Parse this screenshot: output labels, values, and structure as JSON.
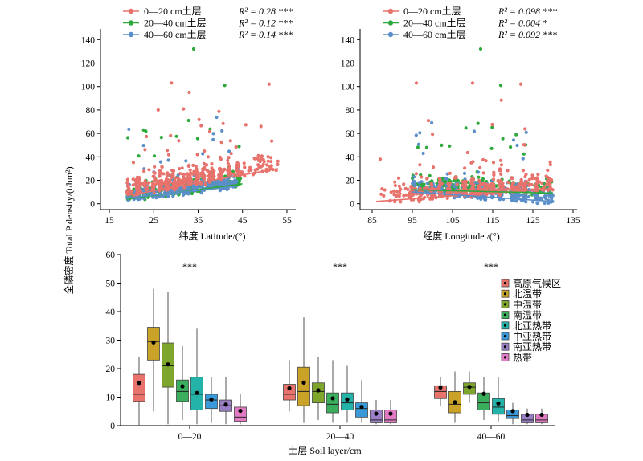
{
  "figure": {
    "ylabel": "全磷密度 Total P density/(t/hm²)"
  },
  "chart_data": [
    {
      "id": "latitude",
      "type": "scatter",
      "xlabel": "纬度 Latitude/(°)",
      "xlim": [
        13,
        57
      ],
      "ylim": [
        -5,
        145
      ],
      "xticks": [
        15,
        25,
        35,
        45,
        55
      ],
      "yticks": [
        0,
        20,
        40,
        60,
        80,
        100,
        120,
        140
      ],
      "legend_position": "top",
      "series": [
        {
          "name": "0—20 cm土层",
          "r2": "R² = 0.28 ***",
          "color": "#E8726C",
          "x_range": [
            19,
            53
          ],
          "trend": {
            "x": [
              19,
              53
            ],
            "y": [
              7,
              30
            ]
          }
        },
        {
          "name": "20—40 cm土层",
          "r2": "R² = 0.12 ***",
          "color": "#2EAA3D",
          "x_range": [
            19,
            45
          ],
          "trend": {
            "x": [
              19,
              45
            ],
            "y": [
              4,
              17
            ]
          }
        },
        {
          "name": "40—60 cm土层",
          "r2": "R² = 0.14 ***",
          "color": "#5B8FC9",
          "x_range": [
            19,
            44
          ],
          "trend": {
            "x": [
              19,
              44
            ],
            "y": [
              5,
              15
            ]
          }
        }
      ]
    },
    {
      "id": "longitude",
      "type": "scatter",
      "xlabel": "经度  Longitude /(°)",
      "xlim": [
        82,
        136
      ],
      "ylim": [
        -5,
        145
      ],
      "xticks": [
        85,
        95,
        105,
        115,
        125,
        135
      ],
      "yticks": [
        0,
        20,
        40,
        60,
        80,
        100,
        120,
        140
      ],
      "legend_position": "top",
      "series": [
        {
          "name": "0—20 cm土层",
          "r2": "R² = 0.098 ***",
          "color": "#E8726C",
          "x_range": [
            87,
            130
          ],
          "trend": {
            "x": [
              86,
              130
            ],
            "y": [
              2,
              13
            ]
          }
        },
        {
          "name": "20—40 cm土层",
          "r2": "R² = 0.004 *",
          "color": "#2EAA3D",
          "x_range": [
            95,
            130
          ],
          "trend": {
            "x": [
              95,
              130
            ],
            "y": [
              12,
              9
            ]
          }
        },
        {
          "name": "40—60 cm土层",
          "r2": "R² = 0.092 ***",
          "color": "#5B8FC9",
          "x_range": [
            95,
            130
          ],
          "trend": {
            "x": [
              95,
              130
            ],
            "y": [
              10,
              2
            ]
          }
        }
      ]
    },
    {
      "id": "boxplot",
      "type": "box",
      "xlabel": "土层 Soil layer/cm",
      "ylim": [
        0,
        60
      ],
      "yticks": [
        0,
        10,
        20,
        30,
        40,
        50,
        60
      ],
      "categories": [
        "0—20",
        "20—40",
        "40—60"
      ],
      "significance": [
        "***",
        "***",
        "***"
      ],
      "legend_position": "right",
      "groups": [
        {
          "name": "高原气候区",
          "color": "#E8726C"
        },
        {
          "name": "北温带",
          "color": "#C9A227"
        },
        {
          "name": "中温带",
          "color": "#7FA62C"
        },
        {
          "name": "南温带",
          "color": "#3AAE5C"
        },
        {
          "name": "北亚热带",
          "color": "#23B3A8"
        },
        {
          "name": "中亚热带",
          "color": "#3A9AD9"
        },
        {
          "name": "南亚热带",
          "color": "#9A7FC4"
        },
        {
          "name": "热带",
          "color": "#E07BC4"
        }
      ],
      "boxes": [
        [
          {
            "wl": 0,
            "q1": 8.5,
            "med": 11,
            "q3": 18,
            "wh": 24,
            "mean": 15
          },
          {
            "wl": 5,
            "q1": 23,
            "med": 29.5,
            "q3": 34.5,
            "wh": 48,
            "mean": 29.2
          },
          {
            "wl": 0.5,
            "q1": 13.5,
            "med": 21,
            "q3": 29,
            "wh": 47,
            "mean": 21.5
          },
          {
            "wl": 2,
            "q1": 8.5,
            "med": 12,
            "q3": 16,
            "wh": 28,
            "mean": 13.8
          },
          {
            "wl": 0.5,
            "q1": 5.5,
            "med": 11,
            "q3": 17,
            "wh": 34,
            "mean": 11.5
          },
          {
            "wl": 1,
            "q1": 6,
            "med": 9,
            "q3": 11,
            "wh": 17,
            "mean": 9.2
          },
          {
            "wl": 0.5,
            "q1": 5,
            "med": 7,
            "q3": 9,
            "wh": 17,
            "mean": 7.4
          },
          {
            "wl": 0.5,
            "q1": 1.5,
            "med": 3,
            "q3": 6.5,
            "wh": 11,
            "mean": 5.2
          }
        ],
        [
          {
            "wl": 5,
            "q1": 9,
            "med": 11,
            "q3": 14.5,
            "wh": 23,
            "mean": 13.1
          },
          {
            "wl": 1,
            "q1": 7,
            "med": 12,
            "q3": 20.5,
            "wh": 38,
            "mean": 15.1
          },
          {
            "wl": 2,
            "q1": 8,
            "med": 12,
            "q3": 15,
            "wh": 24,
            "mean": 12.4
          },
          {
            "wl": 1,
            "q1": 4.5,
            "med": 7.5,
            "q3": 11.5,
            "wh": 23,
            "mean": 9.6
          },
          {
            "wl": 1,
            "q1": 5.5,
            "med": 8,
            "q3": 11.5,
            "wh": 21,
            "mean": 9.2
          },
          {
            "wl": 1,
            "q1": 3,
            "med": 6,
            "q3": 8,
            "wh": 16,
            "mean": 6.6
          },
          {
            "wl": 0.5,
            "q1": 1,
            "med": 2,
            "q3": 5.5,
            "wh": 9,
            "mean": 4.2
          },
          {
            "wl": 0.5,
            "q1": 1,
            "med": 2,
            "q3": 5.5,
            "wh": 9,
            "mean": 4.2
          }
        ],
        [
          {
            "wl": 7,
            "q1": 9.5,
            "med": 12,
            "q3": 14,
            "wh": 17,
            "mean": 13.4
          },
          {
            "wl": 1,
            "q1": 4.5,
            "med": 7.5,
            "q3": 12,
            "wh": 19,
            "mean": 8.2
          },
          {
            "wl": 8,
            "q1": 11,
            "med": 13.5,
            "q3": 15,
            "wh": 19,
            "mean": 13.6
          },
          {
            "wl": 2,
            "q1": 5.5,
            "med": 8,
            "q3": 11.5,
            "wh": 17,
            "mean": 11.2
          },
          {
            "wl": 1.5,
            "q1": 4,
            "med": 6.5,
            "q3": 9.5,
            "wh": 17,
            "mean": 7.8
          },
          {
            "wl": 0.5,
            "q1": 2.5,
            "med": 3.5,
            "q3": 5.5,
            "wh": 8,
            "mean": 5.1
          },
          {
            "wl": 0.5,
            "q1": 1,
            "med": 2,
            "q3": 4,
            "wh": 6,
            "mean": 3.8
          },
          {
            "wl": 0.5,
            "q1": 1,
            "med": 2,
            "q3": 4,
            "wh": 6,
            "mean": 3.8
          }
        ]
      ]
    }
  ]
}
